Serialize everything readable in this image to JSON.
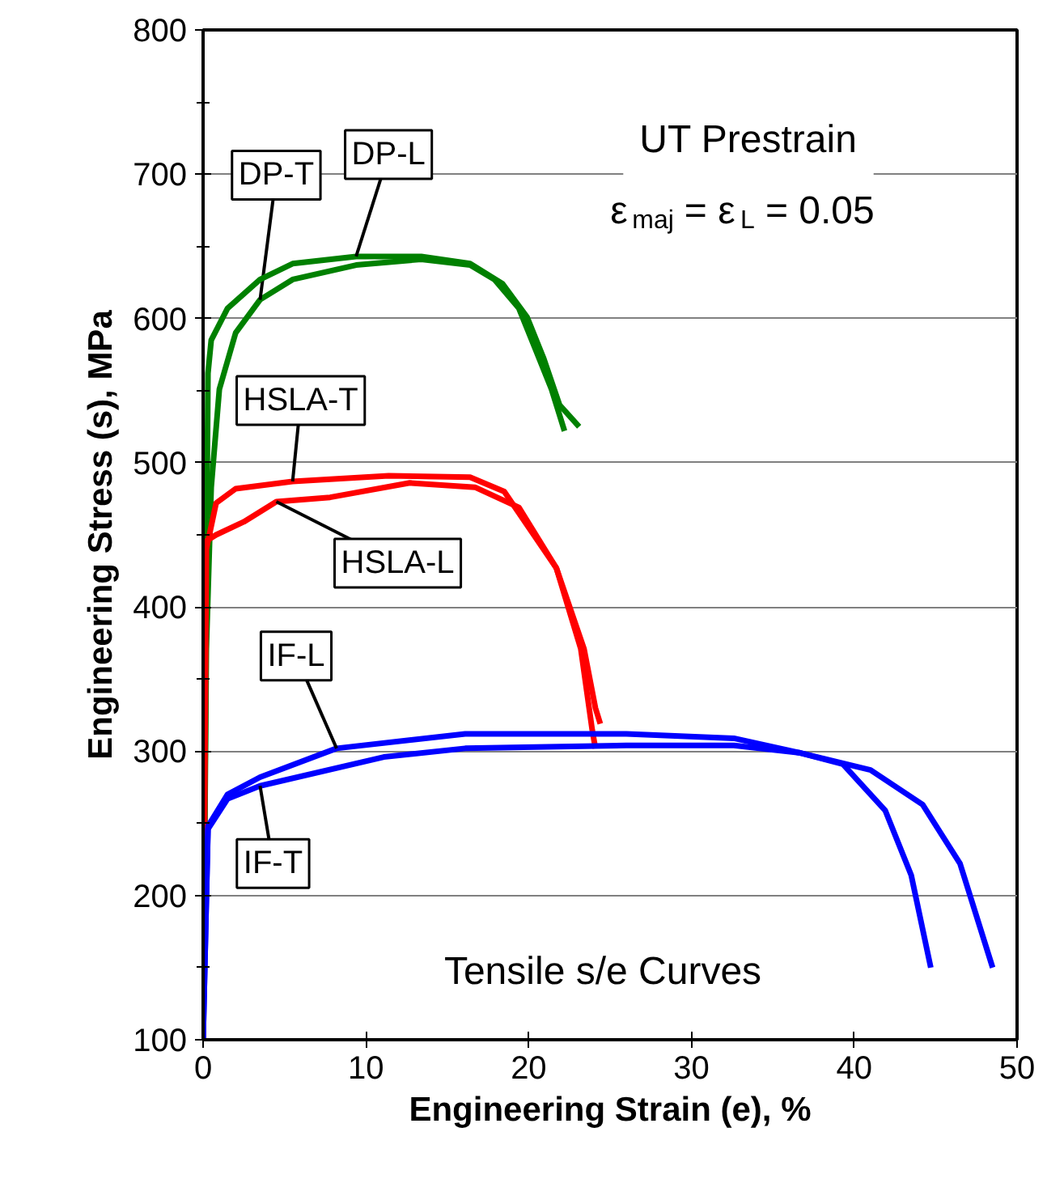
{
  "chart_data": {
    "type": "line",
    "xlabel": "Engineering Strain (e), %",
    "ylabel": "Engineering Stress (s), MPa",
    "xlim": [
      0,
      50
    ],
    "ylim": [
      100,
      800
    ],
    "xticks": [
      0,
      10,
      20,
      30,
      40,
      50
    ],
    "yticks": [
      100,
      200,
      300,
      400,
      500,
      600,
      700,
      800
    ],
    "grid": "y",
    "legend": false,
    "marker": "none",
    "line_style": "solid",
    "annotations": [
      "UT Prestrain",
      "ε$_{maj}$ = ε$_{L}$ = 0.05",
      "Tensile s/e Curves"
    ],
    "series": [
      {
        "name": "DP-T",
        "color": "#008000",
        "x": [
          0,
          0.2,
          0.5,
          1.0,
          2.0,
          3.5,
          5.5,
          9.4,
          13.4,
          16.4,
          17.9,
          19.4,
          20.4,
          21.4,
          22.2
        ],
        "values": [
          100,
          371,
          483,
          551,
          590,
          613,
          627,
          637,
          641,
          637,
          627,
          607,
          579,
          551,
          522
        ]
      },
      {
        "name": "DP-L",
        "color": "#008000",
        "x": [
          0,
          0.3,
          0.5,
          1.5,
          3.5,
          5.5,
          9.4,
          13.4,
          16.4,
          18.4,
          19.9,
          20.9,
          21.9,
          23.1
        ],
        "values": [
          100,
          562,
          585,
          607,
          627,
          638,
          643,
          643,
          638,
          624,
          601,
          573,
          540,
          525
        ]
      },
      {
        "name": "HSLA-T",
        "color": "#ff0000",
        "x": [
          0,
          0.2,
          0.8,
          2.0,
          5.5,
          11.4,
          16.4,
          18.5,
          21.7,
          23.4,
          24.1,
          24.4
        ],
        "values": [
          100,
          440,
          472,
          482,
          487,
          491,
          490,
          480,
          427,
          371,
          330,
          319
        ]
      },
      {
        "name": "HSLA-L",
        "color": "#ff0000",
        "x": [
          0,
          0.1,
          0.8,
          2.5,
          4.5,
          7.8,
          12.7,
          16.7,
          19.4,
          21.7,
          23.2,
          23.9,
          24.1
        ],
        "values": [
          100,
          445,
          450,
          459,
          473,
          476,
          486,
          483,
          469,
          427,
          371,
          315,
          302
        ]
      },
      {
        "name": "IF-L",
        "color": "#0000ff",
        "x": [
          0,
          0.3,
          1.5,
          3.5,
          8.2,
          16.1,
          26.0,
          32.6,
          36.6,
          39.3,
          41.9,
          43.5,
          44.7
        ],
        "values": [
          100,
          248,
          270,
          282,
          302,
          312,
          312,
          309,
          299,
          291,
          259,
          214,
          150
        ]
      },
      {
        "name": "IF-T",
        "color": "#0000ff",
        "x": [
          0,
          0.3,
          1.5,
          3.5,
          11.1,
          16.1,
          26.0,
          32.6,
          36.6,
          41.0,
          44.2,
          46.5,
          48.5
        ],
        "values": [
          100,
          246,
          267,
          276,
          296,
          302,
          304,
          304,
          299,
          287,
          263,
          222,
          150
        ]
      }
    ]
  }
}
